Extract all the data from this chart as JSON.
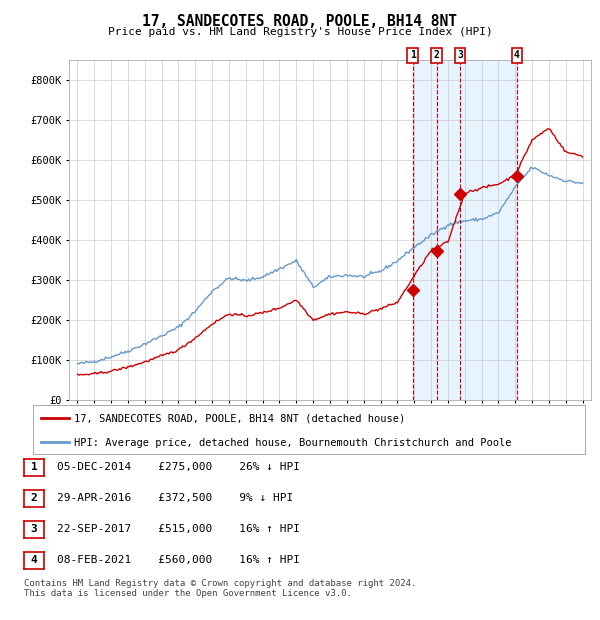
{
  "title": "17, SANDECOTES ROAD, POOLE, BH14 8NT",
  "subtitle": "Price paid vs. HM Land Registry's House Price Index (HPI)",
  "legend_label_red": "17, SANDECOTES ROAD, POOLE, BH14 8NT (detached house)",
  "legend_label_blue": "HPI: Average price, detached house, Bournemouth Christchurch and Poole",
  "footnote1": "Contains HM Land Registry data © Crown copyright and database right 2024.",
  "footnote2": "This data is licensed under the Open Government Licence v3.0.",
  "sales": [
    {
      "label": "1",
      "date": "05-DEC-2014",
      "price": 275000,
      "pct": "26%",
      "dir": "↓",
      "x_year": 2014.92
    },
    {
      "label": "2",
      "date": "29-APR-2016",
      "price": 372500,
      "pct": "9%",
      "dir": "↓",
      "x_year": 2016.33
    },
    {
      "label": "3",
      "date": "22-SEP-2017",
      "price": 515000,
      "pct": "16%",
      "dir": "↑",
      "x_year": 2017.72
    },
    {
      "label": "4",
      "date": "08-FEB-2021",
      "price": 560000,
      "pct": "16%",
      "dir": "↑",
      "x_year": 2021.1
    }
  ],
  "xlim": [
    1994.5,
    2025.5
  ],
  "ylim": [
    0,
    850000
  ],
  "yticks": [
    0,
    100000,
    200000,
    300000,
    400000,
    500000,
    600000,
    700000,
    800000
  ],
  "ytick_labels": [
    "£0",
    "£100K",
    "£200K",
    "£300K",
    "£400K",
    "£500K",
    "£600K",
    "£700K",
    "£800K"
  ],
  "plot_bg": "#ffffff",
  "red_color": "#cc0000",
  "blue_color": "#6699cc",
  "shade_color": "#ddeeff",
  "grid_color": "#cccccc",
  "hpi_base": {
    "1995": 90000,
    "1996": 96000,
    "1997": 108000,
    "1998": 122000,
    "1999": 140000,
    "2000": 160000,
    "2001": 182000,
    "2002": 222000,
    "2003": 272000,
    "2004": 305000,
    "2005": 298000,
    "2006": 308000,
    "2007": 328000,
    "2008": 348000,
    "2009": 282000,
    "2010": 308000,
    "2011": 312000,
    "2012": 308000,
    "2013": 322000,
    "2014": 348000,
    "2015": 382000,
    "2016": 412000,
    "2017": 438000,
    "2018": 448000,
    "2019": 452000,
    "2020": 468000,
    "2021": 532000,
    "2022": 582000,
    "2023": 562000,
    "2024": 548000,
    "2025": 542000
  },
  "prop_base": {
    "1995": 62000,
    "1996": 65000,
    "1997": 72000,
    "1998": 82000,
    "1999": 95000,
    "2000": 110000,
    "2001": 125000,
    "2002": 155000,
    "2003": 190000,
    "2004": 215000,
    "2005": 210000,
    "2006": 218000,
    "2007": 230000,
    "2008": 250000,
    "2009": 200000,
    "2010": 215000,
    "2011": 220000,
    "2012": 215000,
    "2013": 228000,
    "2014": 244000,
    "2015": 310000,
    "2016": 374000,
    "2017": 395000,
    "2018": 518000,
    "2019": 530000,
    "2020": 540000,
    "2021": 562000,
    "2022": 650000,
    "2023": 680000,
    "2024": 620000,
    "2025": 610000
  }
}
